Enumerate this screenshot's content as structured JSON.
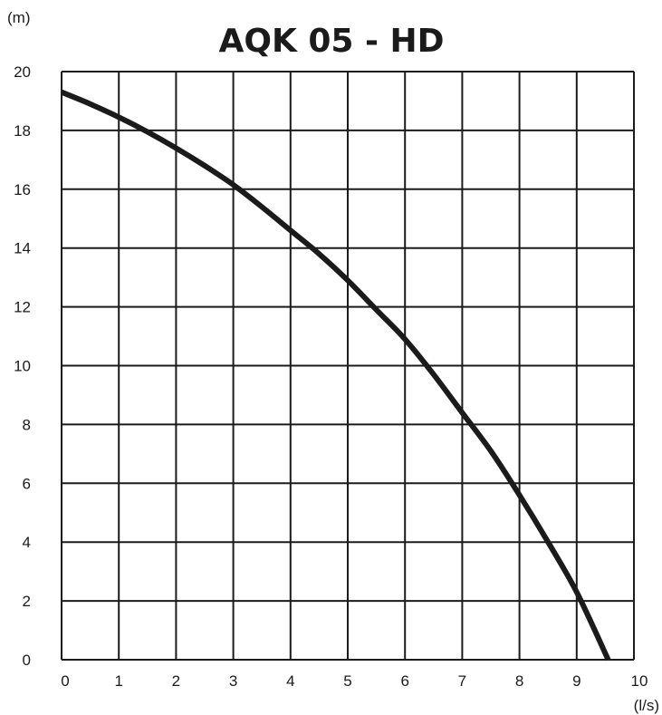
{
  "chart_data": {
    "type": "line",
    "title": "AQK 05 - HD",
    "ylabel": "(m)",
    "xlabel": "(l/s)",
    "xlim": [
      0,
      10
    ],
    "ylim": [
      0,
      20
    ],
    "grid": true,
    "x_ticks": [
      "0",
      "1",
      "2",
      "3",
      "4",
      "5",
      "6",
      "7",
      "8",
      "9",
      "10"
    ],
    "y_ticks": [
      "0",
      "2",
      "4",
      "6",
      "8",
      "10",
      "12",
      "14",
      "16",
      "18",
      "20"
    ],
    "series": [
      {
        "x": [
          0,
          0.5,
          1,
          1.5,
          2,
          2.5,
          3,
          3.5,
          4,
          4.5,
          5,
          5.5,
          6,
          6.5,
          7,
          7.5,
          8,
          8.5,
          9,
          9.55
        ],
        "y": [
          19.3,
          18.9,
          18.45,
          17.95,
          17.4,
          16.8,
          16.15,
          15.4,
          14.6,
          13.8,
          12.9,
          11.9,
          10.9,
          9.7,
          8.4,
          7.1,
          5.6,
          4.0,
          2.3,
          0.0
        ]
      }
    ]
  }
}
